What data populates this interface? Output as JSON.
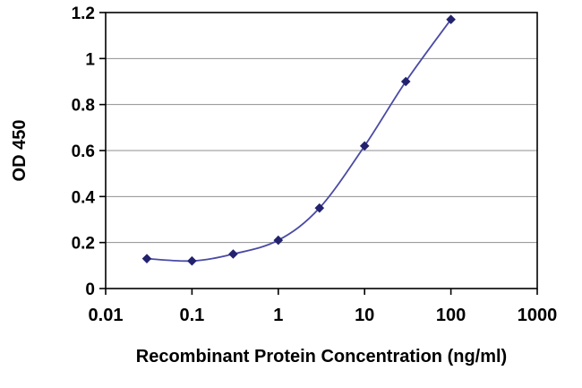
{
  "chart_data": {
    "type": "line",
    "title": "",
    "xlabel": "Recombinant Protein Concentration (ng/ml)",
    "ylabel": "OD 450",
    "x_scale": "log",
    "xlim": [
      0.01,
      1000
    ],
    "ylim": [
      0,
      1.2
    ],
    "x_ticks": [
      0.01,
      0.1,
      1,
      10,
      100,
      1000
    ],
    "x_tick_labels": [
      "0.01",
      "0.1",
      "1",
      "10",
      "100",
      "1000"
    ],
    "y_ticks": [
      0,
      0.2,
      0.4,
      0.6,
      0.8,
      1,
      1.2
    ],
    "y_tick_labels": [
      "0",
      "0.2",
      "0.4",
      "0.6",
      "0.8",
      "1",
      "1.2"
    ],
    "grid": "horizontal",
    "legend": "none",
    "series": [
      {
        "name": "OD 450",
        "marker": "diamond",
        "points": [
          {
            "x": 0.03,
            "y": 0.13
          },
          {
            "x": 0.1,
            "y": 0.12
          },
          {
            "x": 0.3,
            "y": 0.15
          },
          {
            "x": 1,
            "y": 0.21
          },
          {
            "x": 3,
            "y": 0.35
          },
          {
            "x": 10,
            "y": 0.62
          },
          {
            "x": 30,
            "y": 0.9
          },
          {
            "x": 100,
            "y": 1.17
          }
        ]
      }
    ],
    "colors": {
      "line": "#4a4aa5",
      "marker": "#22226e",
      "grid": "#8f8f8f",
      "axis": "#000000",
      "text": "#000000",
      "background": "#ffffff"
    }
  }
}
